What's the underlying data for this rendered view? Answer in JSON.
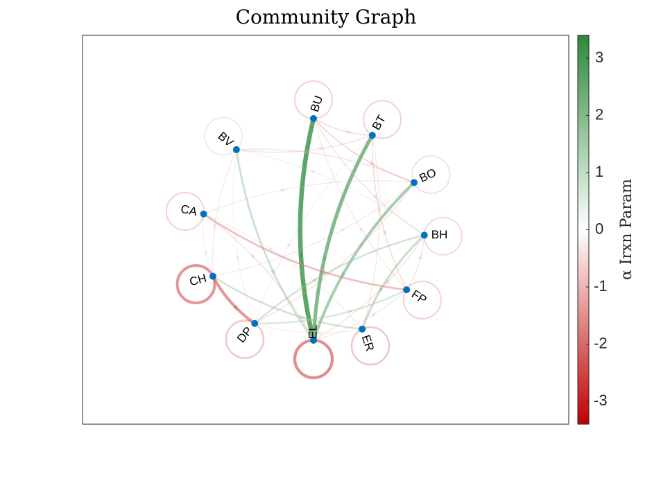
{
  "figure": {
    "title": "Community Graph"
  },
  "graph": {
    "nodes": [
      {
        "id": "BU",
        "angle": 90,
        "label_angle": -72
      },
      {
        "id": "BT",
        "angle": 58,
        "label_angle": -60
      },
      {
        "id": "BO",
        "angle": 25,
        "label_angle": -25
      },
      {
        "id": "BH",
        "angle": -3,
        "label_angle": 0
      },
      {
        "id": "FP",
        "angle": -33,
        "label_angle": 33
      },
      {
        "id": "ER",
        "angle": -64,
        "label_angle": 72
      },
      {
        "id": "EL",
        "angle": -90,
        "label_angle": -90
      },
      {
        "id": "DP",
        "angle": -122,
        "label_angle": -50
      },
      {
        "id": "CH",
        "angle": -155,
        "label_angle": -15
      },
      {
        "id": "CA",
        "angle": 172,
        "label_angle": 12
      },
      {
        "id": "BV",
        "angle": 134,
        "label_angle": 40
      }
    ],
    "self_loops": [
      {
        "node": "BU",
        "value": -0.6
      },
      {
        "node": "BT",
        "value": -0.6
      },
      {
        "node": "BO",
        "value": -0.4
      },
      {
        "node": "BH",
        "value": -0.5
      },
      {
        "node": "FP",
        "value": -0.6
      },
      {
        "node": "ER",
        "value": -0.8
      },
      {
        "node": "EL",
        "value": -1.6
      },
      {
        "node": "DP",
        "value": -0.8
      },
      {
        "node": "CH",
        "value": -1.5
      },
      {
        "node": "CA",
        "value": -0.6
      },
      {
        "node": "BV",
        "value": -0.3
      }
    ],
    "edges": [
      {
        "from": "BU",
        "to": "EL",
        "value": 2.6
      },
      {
        "from": "BT",
        "to": "EL",
        "value": 2.0
      },
      {
        "from": "BO",
        "to": "EL",
        "value": 1.5
      },
      {
        "from": "BH",
        "to": "ER",
        "value": 1.0
      },
      {
        "from": "BH",
        "to": "DP",
        "value": 0.8
      },
      {
        "from": "BV",
        "to": "EL",
        "value": 0.9
      },
      {
        "from": "CH",
        "to": "ER",
        "value": 0.8
      },
      {
        "from": "DP",
        "to": "FP",
        "value": 0.7
      },
      {
        "from": "CA",
        "to": "FP",
        "value": -0.9
      },
      {
        "from": "CH",
        "to": "DP",
        "value": -1.5
      },
      {
        "from": "BU",
        "to": "BO",
        "value": -0.5
      },
      {
        "from": "BU",
        "to": "BT",
        "value": -0.4
      },
      {
        "from": "BT",
        "to": "FP",
        "value": -0.4
      },
      {
        "from": "BO",
        "to": "BV",
        "value": -0.3
      },
      {
        "from": "BU",
        "to": "BH",
        "value": -0.3
      },
      {
        "from": "BV",
        "to": "BT",
        "value": -0.3
      },
      {
        "from": "BO",
        "to": "CA",
        "value": -0.2
      },
      {
        "from": "EL",
        "to": "BH",
        "value": -0.3
      },
      {
        "from": "DP",
        "to": "BO",
        "value": -0.3
      },
      {
        "from": "CH",
        "to": "BO",
        "value": -0.2
      },
      {
        "from": "BV",
        "to": "CH",
        "value": -0.2
      },
      {
        "from": "EL",
        "to": "CA",
        "value": -0.3
      },
      {
        "from": "ER",
        "to": "BT",
        "value": -0.2
      },
      {
        "from": "FP",
        "to": "BH",
        "value": -0.3
      },
      {
        "from": "BU",
        "to": "FP",
        "value": -0.2
      },
      {
        "from": "EL",
        "to": "FP",
        "value": -0.2
      },
      {
        "from": "DP",
        "to": "ER",
        "value": -0.1
      },
      {
        "from": "BV",
        "to": "DP",
        "value": -0.1
      },
      {
        "from": "CA",
        "to": "CH",
        "value": -0.1
      },
      {
        "from": "BT",
        "to": "DP",
        "value": -0.1
      },
      {
        "from": "BH",
        "to": "BV",
        "value": 0.2
      },
      {
        "from": "ER",
        "to": "CA",
        "value": 0.2
      }
    ]
  },
  "colorbar": {
    "label": "α Irxn Param",
    "range": [
      -3.4,
      3.4
    ],
    "ticks": [
      {
        "value": 3,
        "label": "3"
      },
      {
        "value": 2,
        "label": "2"
      },
      {
        "value": 1,
        "label": "1"
      },
      {
        "value": 0,
        "label": "0"
      },
      {
        "value": -1,
        "label": "-1"
      },
      {
        "value": -2,
        "label": "-2"
      },
      {
        "value": -3,
        "label": "-3"
      }
    ],
    "colors": {
      "positive": "#2a8a3a",
      "neutral": "#ffffff",
      "negative": "#c00000"
    }
  },
  "node_color": "#0072bd"
}
